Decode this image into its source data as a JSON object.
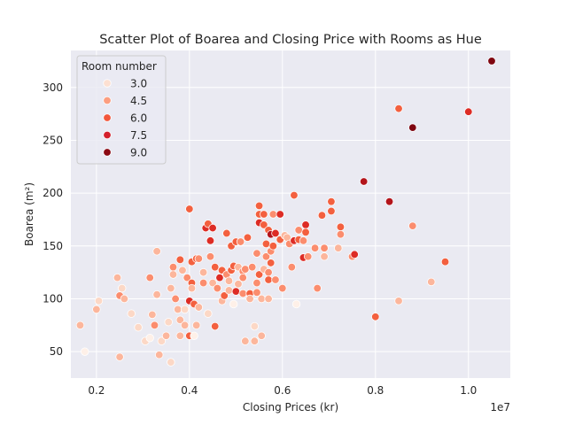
{
  "chart_data": {
    "type": "scatter",
    "title": "Scatter Plot of Boarea and Closing Price with Rooms as Hue",
    "xlabel": "Closing Prices (kr)",
    "ylabel": "Boarea (m²)",
    "x_offset_label": "1e7",
    "xlim": [
      1450000,
      10900000
    ],
    "ylim": [
      25,
      335
    ],
    "xticks": [
      2000000,
      4000000,
      6000000,
      8000000,
      10000000
    ],
    "xtick_labels": [
      "0.2",
      "0.4",
      "0.6",
      "0.8",
      "1.0"
    ],
    "yticks": [
      50,
      100,
      150,
      200,
      250,
      300
    ],
    "ytick_labels": [
      "50",
      "100",
      "150",
      "200",
      "250",
      "300"
    ],
    "grid": true,
    "legend": {
      "title": "Room number",
      "placement": "top-left",
      "entries": [
        {
          "label": "3.0",
          "color": "#fde0d2"
        },
        {
          "label": "4.5",
          "color": "#fc9e80"
        },
        {
          "label": "6.0",
          "color": "#f2563b"
        },
        {
          "label": "7.5",
          "color": "#d4202c"
        },
        {
          "label": "9.0",
          "color": "#8b0a14"
        }
      ]
    },
    "hue_colors": {
      "2": "#fef0e8",
      "3": "#fcd8c6",
      "4": "#fcb69c",
      "5": "#fb8d6e",
      "6": "#f3603f",
      "7": "#dd2c25",
      "8": "#b3141b",
      "9": "#7f0610"
    },
    "points": [
      {
        "x": 1650000,
        "y": 75,
        "r": 4
      },
      {
        "x": 1750000,
        "y": 50,
        "r": 2
      },
      {
        "x": 2000000,
        "y": 90,
        "r": 4
      },
      {
        "x": 2050000,
        "y": 98,
        "r": 3
      },
      {
        "x": 2500000,
        "y": 45,
        "r": 4
      },
      {
        "x": 2450000,
        "y": 120,
        "r": 4
      },
      {
        "x": 2500000,
        "y": 103,
        "r": 5
      },
      {
        "x": 2600000,
        "y": 100,
        "r": 4
      },
      {
        "x": 2550000,
        "y": 110,
        "r": 3
      },
      {
        "x": 2750000,
        "y": 86,
        "r": 3
      },
      {
        "x": 2900000,
        "y": 73,
        "r": 3
      },
      {
        "x": 3050000,
        "y": 60,
        "r": 3
      },
      {
        "x": 3150000,
        "y": 63,
        "r": 2
      },
      {
        "x": 3200000,
        "y": 85,
        "r": 4
      },
      {
        "x": 3250000,
        "y": 75,
        "r": 5
      },
      {
        "x": 3150000,
        "y": 120,
        "r": 5
      },
      {
        "x": 3300000,
        "y": 145,
        "r": 4
      },
      {
        "x": 3300000,
        "y": 104,
        "r": 4
      },
      {
        "x": 3350000,
        "y": 47,
        "r": 4
      },
      {
        "x": 3400000,
        "y": 60,
        "r": 3
      },
      {
        "x": 3500000,
        "y": 65,
        "r": 4
      },
      {
        "x": 3550000,
        "y": 78,
        "r": 3
      },
      {
        "x": 3600000,
        "y": 40,
        "r": 3
      },
      {
        "x": 3600000,
        "y": 110,
        "r": 4
      },
      {
        "x": 3650000,
        "y": 130,
        "r": 5
      },
      {
        "x": 3650000,
        "y": 123,
        "r": 4
      },
      {
        "x": 3700000,
        "y": 100,
        "r": 5
      },
      {
        "x": 3750000,
        "y": 90,
        "r": 4
      },
      {
        "x": 3800000,
        "y": 65,
        "r": 4
      },
      {
        "x": 3800000,
        "y": 80,
        "r": 4
      },
      {
        "x": 3850000,
        "y": 127,
        "r": 4
      },
      {
        "x": 3800000,
        "y": 137,
        "r": 6
      },
      {
        "x": 3900000,
        "y": 90,
        "r": 3
      },
      {
        "x": 3900000,
        "y": 75,
        "r": 4
      },
      {
        "x": 3950000,
        "y": 120,
        "r": 5
      },
      {
        "x": 4000000,
        "y": 65,
        "r": 6
      },
      {
        "x": 4000000,
        "y": 98,
        "r": 7
      },
      {
        "x": 4000000,
        "y": 185,
        "r": 6
      },
      {
        "x": 4050000,
        "y": 135,
        "r": 6
      },
      {
        "x": 4050000,
        "y": 115,
        "r": 6
      },
      {
        "x": 4050000,
        "y": 110,
        "r": 4
      },
      {
        "x": 4100000,
        "y": 95,
        "r": 6
      },
      {
        "x": 4100000,
        "y": 65,
        "r": 2
      },
      {
        "x": 4150000,
        "y": 75,
        "r": 4
      },
      {
        "x": 4150000,
        "y": 138,
        "r": 6
      },
      {
        "x": 4200000,
        "y": 138,
        "r": 5
      },
      {
        "x": 4200000,
        "y": 92,
        "r": 4
      },
      {
        "x": 4300000,
        "y": 115,
        "r": 5
      },
      {
        "x": 4300000,
        "y": 125,
        "r": 4
      },
      {
        "x": 4350000,
        "y": 167,
        "r": 7
      },
      {
        "x": 4400000,
        "y": 171,
        "r": 6
      },
      {
        "x": 4400000,
        "y": 86,
        "r": 3
      },
      {
        "x": 4450000,
        "y": 155,
        "r": 7
      },
      {
        "x": 4450000,
        "y": 140,
        "r": 5
      },
      {
        "x": 4500000,
        "y": 167,
        "r": 7
      },
      {
        "x": 4550000,
        "y": 74,
        "r": 6
      },
      {
        "x": 4500000,
        "y": 115,
        "r": 4
      },
      {
        "x": 4550000,
        "y": 130,
        "r": 6
      },
      {
        "x": 4600000,
        "y": 110,
        "r": 5
      },
      {
        "x": 4650000,
        "y": 120,
        "r": 7
      },
      {
        "x": 4700000,
        "y": 127,
        "r": 6
      },
      {
        "x": 4700000,
        "y": 98,
        "r": 4
      },
      {
        "x": 4750000,
        "y": 103,
        "r": 6
      },
      {
        "x": 4800000,
        "y": 162,
        "r": 6
      },
      {
        "x": 4800000,
        "y": 123,
        "r": 5
      },
      {
        "x": 4850000,
        "y": 117,
        "r": 4
      },
      {
        "x": 4850000,
        "y": 108,
        "r": 4
      },
      {
        "x": 4900000,
        "y": 150,
        "r": 6
      },
      {
        "x": 4900000,
        "y": 127,
        "r": 6
      },
      {
        "x": 4950000,
        "y": 131,
        "r": 6
      },
      {
        "x": 4950000,
        "y": 95,
        "r": 2
      },
      {
        "x": 5000000,
        "y": 107,
        "r": 7
      },
      {
        "x": 5000000,
        "y": 154,
        "r": 6
      },
      {
        "x": 5050000,
        "y": 114,
        "r": 4
      },
      {
        "x": 5050000,
        "y": 130,
        "r": 4
      },
      {
        "x": 5100000,
        "y": 154,
        "r": 5
      },
      {
        "x": 5150000,
        "y": 126,
        "r": 5
      },
      {
        "x": 5150000,
        "y": 120,
        "r": 5
      },
      {
        "x": 5150000,
        "y": 105,
        "r": 5
      },
      {
        "x": 5200000,
        "y": 60,
        "r": 4
      },
      {
        "x": 5200000,
        "y": 128,
        "r": 5
      },
      {
        "x": 5250000,
        "y": 158,
        "r": 6
      },
      {
        "x": 5300000,
        "y": 105,
        "r": 6
      },
      {
        "x": 5300000,
        "y": 100,
        "r": 4
      },
      {
        "x": 5350000,
        "y": 130,
        "r": 5
      },
      {
        "x": 5400000,
        "y": 74,
        "r": 3
      },
      {
        "x": 5400000,
        "y": 60,
        "r": 4
      },
      {
        "x": 5450000,
        "y": 143,
        "r": 5
      },
      {
        "x": 5450000,
        "y": 106,
        "r": 5
      },
      {
        "x": 5450000,
        "y": 115,
        "r": 5
      },
      {
        "x": 5500000,
        "y": 172,
        "r": 7
      },
      {
        "x": 5500000,
        "y": 188,
        "r": 6
      },
      {
        "x": 5500000,
        "y": 180,
        "r": 6
      },
      {
        "x": 5500000,
        "y": 123,
        "r": 6
      },
      {
        "x": 5550000,
        "y": 65,
        "r": 4
      },
      {
        "x": 5550000,
        "y": 100,
        "r": 4
      },
      {
        "x": 5600000,
        "y": 180,
        "r": 6
      },
      {
        "x": 5600000,
        "y": 170,
        "r": 6
      },
      {
        "x": 5600000,
        "y": 128,
        "r": 4
      },
      {
        "x": 5650000,
        "y": 152,
        "r": 6
      },
      {
        "x": 5650000,
        "y": 140,
        "r": 5
      },
      {
        "x": 5700000,
        "y": 165,
        "r": 6
      },
      {
        "x": 5700000,
        "y": 125,
        "r": 5
      },
      {
        "x": 5700000,
        "y": 118,
        "r": 6
      },
      {
        "x": 5700000,
        "y": 100,
        "r": 4
      },
      {
        "x": 5750000,
        "y": 161,
        "r": 8
      },
      {
        "x": 5750000,
        "y": 145,
        "r": 5
      },
      {
        "x": 5750000,
        "y": 134,
        "r": 6
      },
      {
        "x": 5800000,
        "y": 180,
        "r": 5
      },
      {
        "x": 5800000,
        "y": 150,
        "r": 6
      },
      {
        "x": 5850000,
        "y": 162,
        "r": 7
      },
      {
        "x": 5850000,
        "y": 118,
        "r": 5
      },
      {
        "x": 5950000,
        "y": 180,
        "r": 7
      },
      {
        "x": 5950000,
        "y": 156,
        "r": 6
      },
      {
        "x": 6000000,
        "y": 110,
        "r": 5
      },
      {
        "x": 6050000,
        "y": 160,
        "r": 4
      },
      {
        "x": 6100000,
        "y": 158,
        "r": 4
      },
      {
        "x": 6150000,
        "y": 152,
        "r": 5
      },
      {
        "x": 6200000,
        "y": 130,
        "r": 5
      },
      {
        "x": 6250000,
        "y": 198,
        "r": 6
      },
      {
        "x": 6250000,
        "y": 155,
        "r": 7
      },
      {
        "x": 6300000,
        "y": 95,
        "r": 2
      },
      {
        "x": 6350000,
        "y": 165,
        "r": 5
      },
      {
        "x": 6350000,
        "y": 156,
        "r": 6
      },
      {
        "x": 6450000,
        "y": 139,
        "r": 7
      },
      {
        "x": 6450000,
        "y": 155,
        "r": 5
      },
      {
        "x": 6500000,
        "y": 170,
        "r": 7
      },
      {
        "x": 6500000,
        "y": 163,
        "r": 6
      },
      {
        "x": 6550000,
        "y": 140,
        "r": 5
      },
      {
        "x": 6700000,
        "y": 148,
        "r": 5
      },
      {
        "x": 6750000,
        "y": 110,
        "r": 5
      },
      {
        "x": 6850000,
        "y": 179,
        "r": 6
      },
      {
        "x": 6900000,
        "y": 148,
        "r": 5
      },
      {
        "x": 6900000,
        "y": 140,
        "r": 4
      },
      {
        "x": 7050000,
        "y": 192,
        "r": 6
      },
      {
        "x": 7050000,
        "y": 183,
        "r": 6
      },
      {
        "x": 7200000,
        "y": 148,
        "r": 4
      },
      {
        "x": 7250000,
        "y": 168,
        "r": 6
      },
      {
        "x": 7250000,
        "y": 161,
        "r": 5
      },
      {
        "x": 7500000,
        "y": 140,
        "r": 5
      },
      {
        "x": 7550000,
        "y": 142,
        "r": 7
      },
      {
        "x": 7750000,
        "y": 211,
        "r": 8
      },
      {
        "x": 8000000,
        "y": 83,
        "r": 6
      },
      {
        "x": 8300000,
        "y": 192,
        "r": 8
      },
      {
        "x": 8500000,
        "y": 280,
        "r": 6
      },
      {
        "x": 8500000,
        "y": 98,
        "r": 4
      },
      {
        "x": 8800000,
        "y": 262,
        "r": 9
      },
      {
        "x": 8800000,
        "y": 169,
        "r": 5
      },
      {
        "x": 9200000,
        "y": 116,
        "r": 4
      },
      {
        "x": 9500000,
        "y": 135,
        "r": 6
      },
      {
        "x": 10000000,
        "y": 277,
        "r": 7
      },
      {
        "x": 10500000,
        "y": 325,
        "r": 9
      }
    ]
  }
}
